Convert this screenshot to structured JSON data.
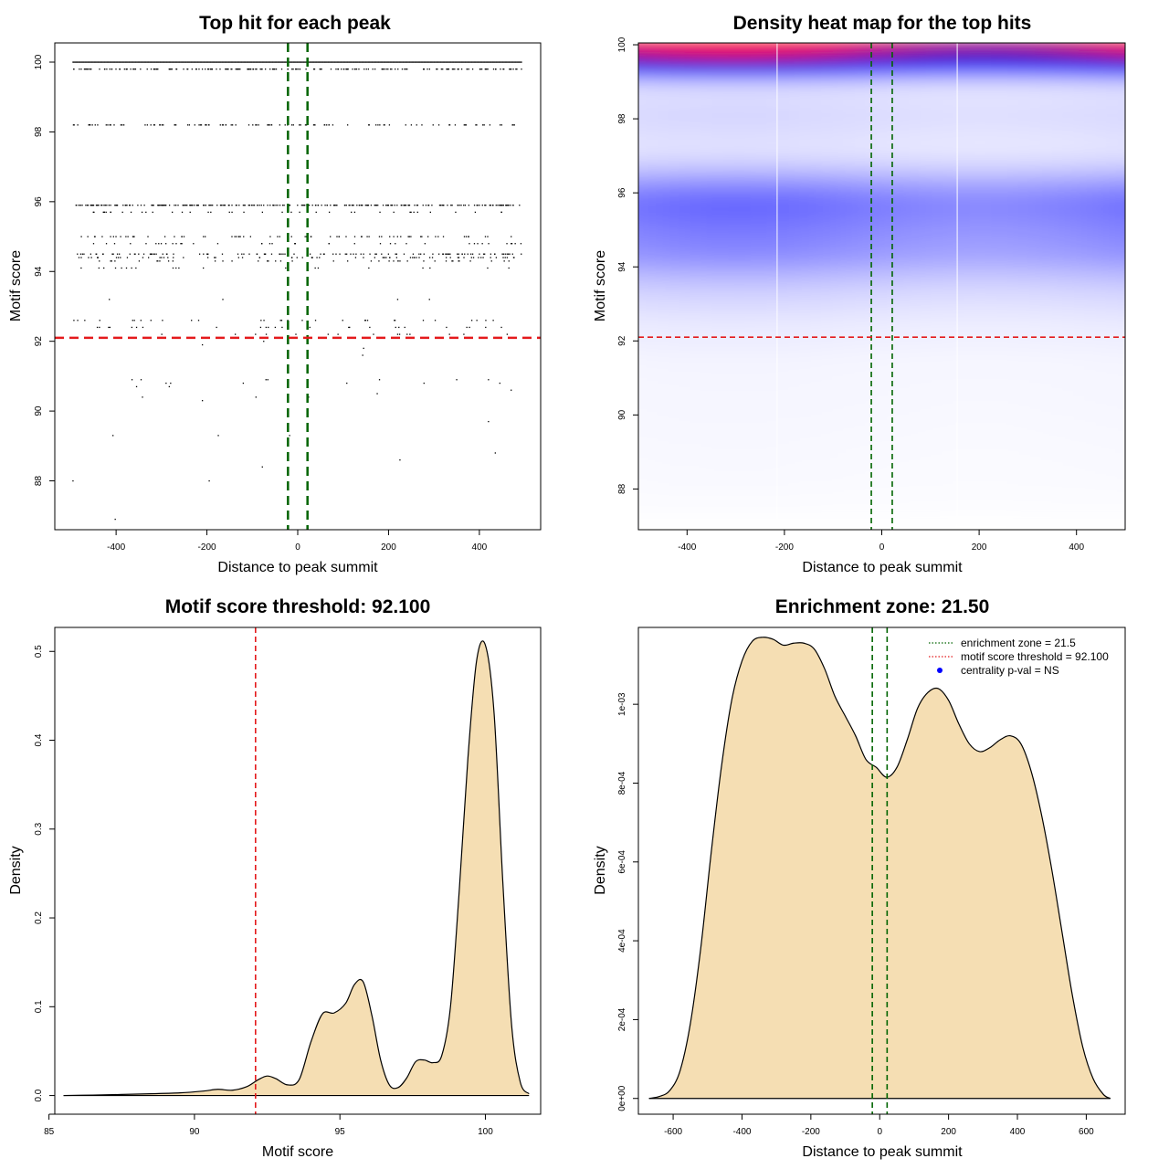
{
  "figure": {
    "description_free": true
  },
  "colors": {
    "enrichment_line": "#006400",
    "threshold_line": "#e41a1c",
    "density_fill": "#f5deb3",
    "heat_low": "#ffffff",
    "heat_mid": "#0000ff",
    "heat_high": "#ff0000",
    "points": "#000000"
  },
  "chart_data": [
    {
      "id": "scatter",
      "type": "scatter",
      "title": "Top hit for each peak",
      "xlabel": "Distance to peak summit",
      "ylabel": "Motif score",
      "xlim": [
        -535,
        535
      ],
      "ylim": [
        86.6,
        100.55
      ],
      "xticks": [
        -400,
        -200,
        0,
        200,
        400
      ],
      "yticks": [
        88,
        90,
        92,
        94,
        96,
        98,
        100
      ],
      "vlines": [
        -21.5,
        21.5
      ],
      "hline": 92.1,
      "bands": [
        {
          "y": 100.0,
          "n": 420,
          "dense": true
        },
        {
          "y": 99.8,
          "n": 200
        },
        {
          "y": 98.2,
          "n": 110
        },
        {
          "y": 95.9,
          "n": 260
        },
        {
          "y": 95.7,
          "n": 40
        },
        {
          "y": 95.0,
          "n": 70
        },
        {
          "y": 94.8,
          "n": 40
        },
        {
          "y": 94.5,
          "n": 110
        },
        {
          "y": 94.4,
          "n": 70
        },
        {
          "y": 94.3,
          "n": 40
        },
        {
          "y": 94.1,
          "n": 20
        },
        {
          "y": 92.6,
          "n": 30
        },
        {
          "y": 92.4,
          "n": 25
        },
        {
          "y": 92.2,
          "n": 15
        }
      ],
      "points": [
        [
          -495,
          88.0
        ],
        [
          -402,
          86.9
        ],
        [
          -407,
          89.3
        ],
        [
          -175,
          89.3
        ],
        [
          -195,
          88.0
        ],
        [
          -78,
          88.4
        ],
        [
          -18,
          89.3
        ],
        [
          225,
          88.6
        ],
        [
          420,
          89.7
        ],
        [
          435,
          88.8
        ],
        [
          -365,
          90.9
        ],
        [
          -355,
          90.7
        ],
        [
          -345,
          90.9
        ],
        [
          -342,
          90.4
        ],
        [
          -290,
          90.8
        ],
        [
          -283,
          90.7
        ],
        [
          -280,
          90.8
        ],
        [
          -210,
          90.3
        ],
        [
          -120,
          90.8
        ],
        [
          -92,
          90.4
        ],
        [
          -70,
          90.9
        ],
        [
          -66,
          90.9
        ],
        [
          24,
          90.4
        ],
        [
          108,
          90.8
        ],
        [
          180,
          90.9
        ],
        [
          175,
          90.5
        ],
        [
          278,
          90.8
        ],
        [
          350,
          90.9
        ],
        [
          420,
          90.9
        ],
        [
          445,
          90.8
        ],
        [
          470,
          90.6
        ],
        [
          -415,
          93.2
        ],
        [
          -165,
          93.2
        ],
        [
          220,
          93.2
        ],
        [
          290,
          93.2
        ],
        [
          -210,
          91.9
        ],
        [
          -75,
          92.0
        ],
        [
          145,
          91.8
        ],
        [
          143,
          91.6
        ]
      ]
    },
    {
      "id": "heatmap",
      "type": "heatmap",
      "title": "Density heat map for the top hits",
      "xlabel": "Distance to peak summit",
      "ylabel": "Motif score",
      "xlim": [
        -500,
        500
      ],
      "ylim": [
        86.9,
        100.05
      ],
      "xticks": [
        -400,
        -200,
        0,
        200,
        400
      ],
      "yticks": [
        88,
        90,
        92,
        94,
        96,
        98,
        100
      ],
      "vlines": [
        -21.5,
        21.5
      ],
      "hline": 92.1,
      "white_vlines": [
        -215,
        155
      ],
      "profile": [
        [
          86.9,
          0.0
        ],
        [
          88.0,
          0.02
        ],
        [
          90.0,
          0.03
        ],
        [
          91.5,
          0.04
        ],
        [
          92.5,
          0.08
        ],
        [
          93.3,
          0.16
        ],
        [
          93.8,
          0.26
        ],
        [
          94.3,
          0.4
        ],
        [
          94.8,
          0.45
        ],
        [
          95.3,
          0.5
        ],
        [
          95.7,
          0.55
        ],
        [
          96.2,
          0.42
        ],
        [
          96.7,
          0.2
        ],
        [
          97.2,
          0.1
        ],
        [
          97.6,
          0.12
        ],
        [
          98.2,
          0.15
        ],
        [
          98.6,
          0.11
        ],
        [
          99.0,
          0.18
        ],
        [
          99.3,
          0.6
        ],
        [
          99.5,
          0.95
        ],
        [
          99.7,
          1.3
        ],
        [
          99.85,
          1.55
        ],
        [
          100.05,
          1.7
        ]
      ]
    },
    {
      "id": "score-density",
      "type": "area",
      "title": "Motif score threshold: 92.100",
      "xlabel": "Motif score",
      "ylabel": "Density",
      "xlim": [
        85.2,
        101.9
      ],
      "ylim": [
        -0.021,
        0.527
      ],
      "xticks": [
        85,
        90,
        95,
        100
      ],
      "yticks": [
        0.0,
        0.1,
        0.2,
        0.3,
        0.4,
        0.5
      ],
      "ytick_labels": [
        "0.0",
        "0.1",
        "0.2",
        "0.3",
        "0.4",
        "0.5"
      ],
      "vline": 92.1,
      "x": [
        85.5,
        86.5,
        87.5,
        88.5,
        89.5,
        90.3,
        90.8,
        91.3,
        91.8,
        92.2,
        92.5,
        92.8,
        93.2,
        93.6,
        94.0,
        94.4,
        94.8,
        95.2,
        95.5,
        95.8,
        96.1,
        96.4,
        96.7,
        97.0,
        97.3,
        97.6,
        97.9,
        98.2,
        98.5,
        98.8,
        99.1,
        99.4,
        99.7,
        100.0,
        100.3,
        100.6,
        100.9,
        101.2,
        101.5
      ],
      "y": [
        0.0,
        0.0005,
        0.0012,
        0.002,
        0.003,
        0.005,
        0.007,
        0.006,
        0.01,
        0.018,
        0.022,
        0.019,
        0.012,
        0.018,
        0.06,
        0.092,
        0.093,
        0.104,
        0.125,
        0.128,
        0.09,
        0.04,
        0.012,
        0.009,
        0.02,
        0.038,
        0.04,
        0.037,
        0.045,
        0.1,
        0.23,
        0.38,
        0.49,
        0.507,
        0.43,
        0.24,
        0.08,
        0.015,
        0.002
      ]
    },
    {
      "id": "distance-density",
      "type": "area",
      "title": "Enrichment zone: 21.50",
      "xlabel": "Distance to peak summit",
      "ylabel": "Density",
      "xlim": [
        -701,
        713
      ],
      "ylim": [
        -4e-05,
        0.001195
      ],
      "xticks": [
        -600,
        -400,
        -200,
        0,
        200,
        400,
        600
      ],
      "yticks": [
        0,
        0.0002,
        0.0004,
        0.0006,
        0.0008,
        0.001
      ],
      "ytick_labels": [
        "0e+00",
        "2e-04",
        "4e-04",
        "6e-04",
        "8e-04",
        "1e-03"
      ],
      "vlines": [
        -21.5,
        21.5
      ],
      "x": [
        -670,
        -640,
        -610,
        -580,
        -550,
        -520,
        -490,
        -460,
        -430,
        -400,
        -370,
        -340,
        -310,
        -280,
        -250,
        -220,
        -190,
        -160,
        -130,
        -100,
        -70,
        -40,
        -10,
        20,
        50,
        80,
        110,
        140,
        170,
        200,
        230,
        260,
        290,
        320,
        350,
        380,
        410,
        440,
        470,
        500,
        530,
        560,
        590,
        620,
        650,
        670
      ],
      "y": [
        0.0,
        5e-06,
        2e-05,
        7e-05,
        0.00019,
        0.00038,
        0.00062,
        0.00084,
        0.00101,
        0.00111,
        0.00116,
        0.00117,
        0.001165,
        0.00115,
        0.001155,
        0.001155,
        0.00114,
        0.00109,
        0.00102,
        0.00097,
        0.00092,
        0.00086,
        0.00084,
        0.000815,
        0.00084,
        0.00091,
        0.00099,
        0.00103,
        0.00104,
        0.00101,
        0.00095,
        0.0009,
        0.00088,
        0.00089,
        0.00091,
        0.00092,
        0.0009,
        0.00083,
        0.00072,
        0.00058,
        0.00042,
        0.00026,
        0.00013,
        5e-05,
        1e-05,
        0.0
      ],
      "legend": {
        "position": "top-right",
        "items": [
          {
            "label": "enrichment zone = 21.5",
            "kind": "dotted-line",
            "color": "#006400"
          },
          {
            "label": "motif score threshold = 92.100",
            "kind": "dotted-line",
            "color": "#e41a1c"
          },
          {
            "label": "centrality p-val = NS",
            "kind": "dot",
            "color": "#0000ff"
          }
        ]
      }
    }
  ]
}
